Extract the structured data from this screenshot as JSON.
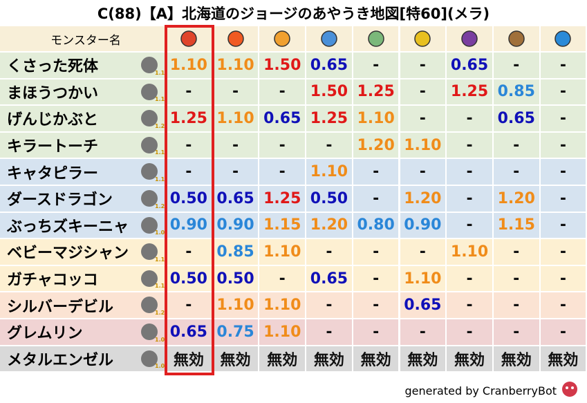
{
  "title": "C(88)【A】北海道のジョージのあやうき地図[特60](メラ)",
  "table": {
    "header": "モンスター名",
    "rows": [
      {
        "name": "くさった死体",
        "rate": "1.1",
        "cells": [
          "1.10",
          "1.10",
          "1.50",
          "0.65",
          "-",
          "-",
          "0.65",
          "-",
          "-"
        ]
      },
      {
        "name": "まほうつかい",
        "rate": "1.1",
        "cells": [
          "-",
          "-",
          "-",
          "1.50",
          "1.25",
          "-",
          "1.25",
          "0.85",
          "-"
        ]
      },
      {
        "name": "げんじかぶと",
        "rate": "1.2",
        "cells": [
          "1.25",
          "1.10",
          "0.65",
          "1.25",
          "1.10",
          "-",
          "-",
          "0.65",
          "-"
        ]
      },
      {
        "name": "キラートーチ",
        "rate": "1.1",
        "cells": [
          "-",
          "-",
          "-",
          "-",
          "1.20",
          "1.10",
          "-",
          "-",
          "-"
        ]
      },
      {
        "name": "キャタピラー",
        "rate": "1.1",
        "cells": [
          "-",
          "-",
          "-",
          "1.10",
          "-",
          "-",
          "-",
          "-",
          "-"
        ]
      },
      {
        "name": "ダースドラゴン",
        "rate": "1.2",
        "cells": [
          "0.50",
          "0.65",
          "1.25",
          "0.50",
          "-",
          "1.20",
          "-",
          "1.20",
          "-"
        ]
      },
      {
        "name": "ぶっちズキーニャ",
        "rate": "1.0",
        "cells": [
          "0.90",
          "0.90",
          "1.15",
          "1.20",
          "0.80",
          "0.90",
          "-",
          "1.15",
          "-"
        ]
      },
      {
        "name": "ベビーマジシャン",
        "rate": "1.1",
        "cells": [
          "-",
          "0.85",
          "1.10",
          "-",
          "-",
          "-",
          "1.10",
          "-",
          "-"
        ]
      },
      {
        "name": "ガチャコッコ",
        "rate": "1.1",
        "cells": [
          "0.50",
          "0.50",
          "-",
          "0.65",
          "-",
          "1.10",
          "-",
          "-",
          "-"
        ]
      },
      {
        "name": "シルバーデビル",
        "rate": "1.2",
        "cells": [
          "-",
          "1.10",
          "1.10",
          "-",
          "-",
          "0.65",
          "-",
          "-",
          "-"
        ]
      },
      {
        "name": "グレムリン",
        "rate": "1.0",
        "cells": [
          "0.65",
          "0.75",
          "1.10",
          "-",
          "-",
          "-",
          "-",
          "-",
          "-"
        ]
      },
      {
        "name": "メタルエンゼル",
        "rate": "1.0",
        "cells": [
          "無効",
          "無効",
          "無効",
          "無効",
          "無効",
          "無効",
          "無効",
          "無効",
          "無効"
        ]
      }
    ]
  },
  "footer": "generated by CranberryBot"
}
